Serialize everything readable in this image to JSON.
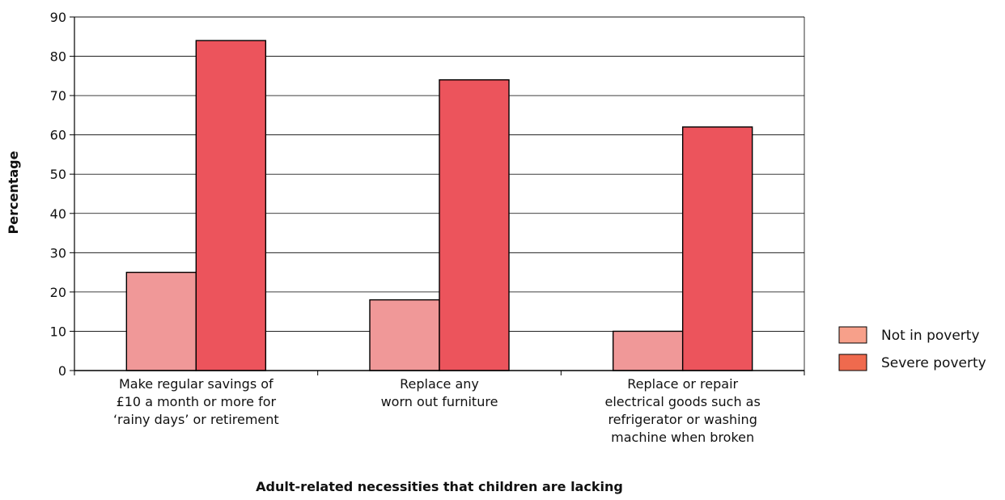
{
  "chart_data": {
    "type": "bar",
    "categories": [
      [
        "Make regular savings of",
        "£10 a month or more for",
        "‘rainy days’ or retirement"
      ],
      [
        "Replace any",
        "worn out furniture"
      ],
      [
        "Replace or repair",
        "electrical goods such as",
        "refrigerator or washing",
        "machine when broken"
      ]
    ],
    "series": [
      {
        "name": "Not in poverty",
        "values": [
          25,
          18,
          10
        ],
        "color": "#f09898",
        "legend_color": "#f7a08a"
      },
      {
        "name": "Severe poverty",
        "values": [
          84,
          74,
          62
        ],
        "color": "#ec545c",
        "legend_color": "#ef6a4e"
      }
    ],
    "ylim": [
      0,
      90
    ],
    "yticks": [
      0,
      10,
      20,
      30,
      40,
      50,
      60,
      70,
      80,
      90
    ],
    "xlabel": "Adult-related necessities that children are lacking",
    "ylabel": "Percentage",
    "grid": true,
    "legend_position": "right"
  }
}
